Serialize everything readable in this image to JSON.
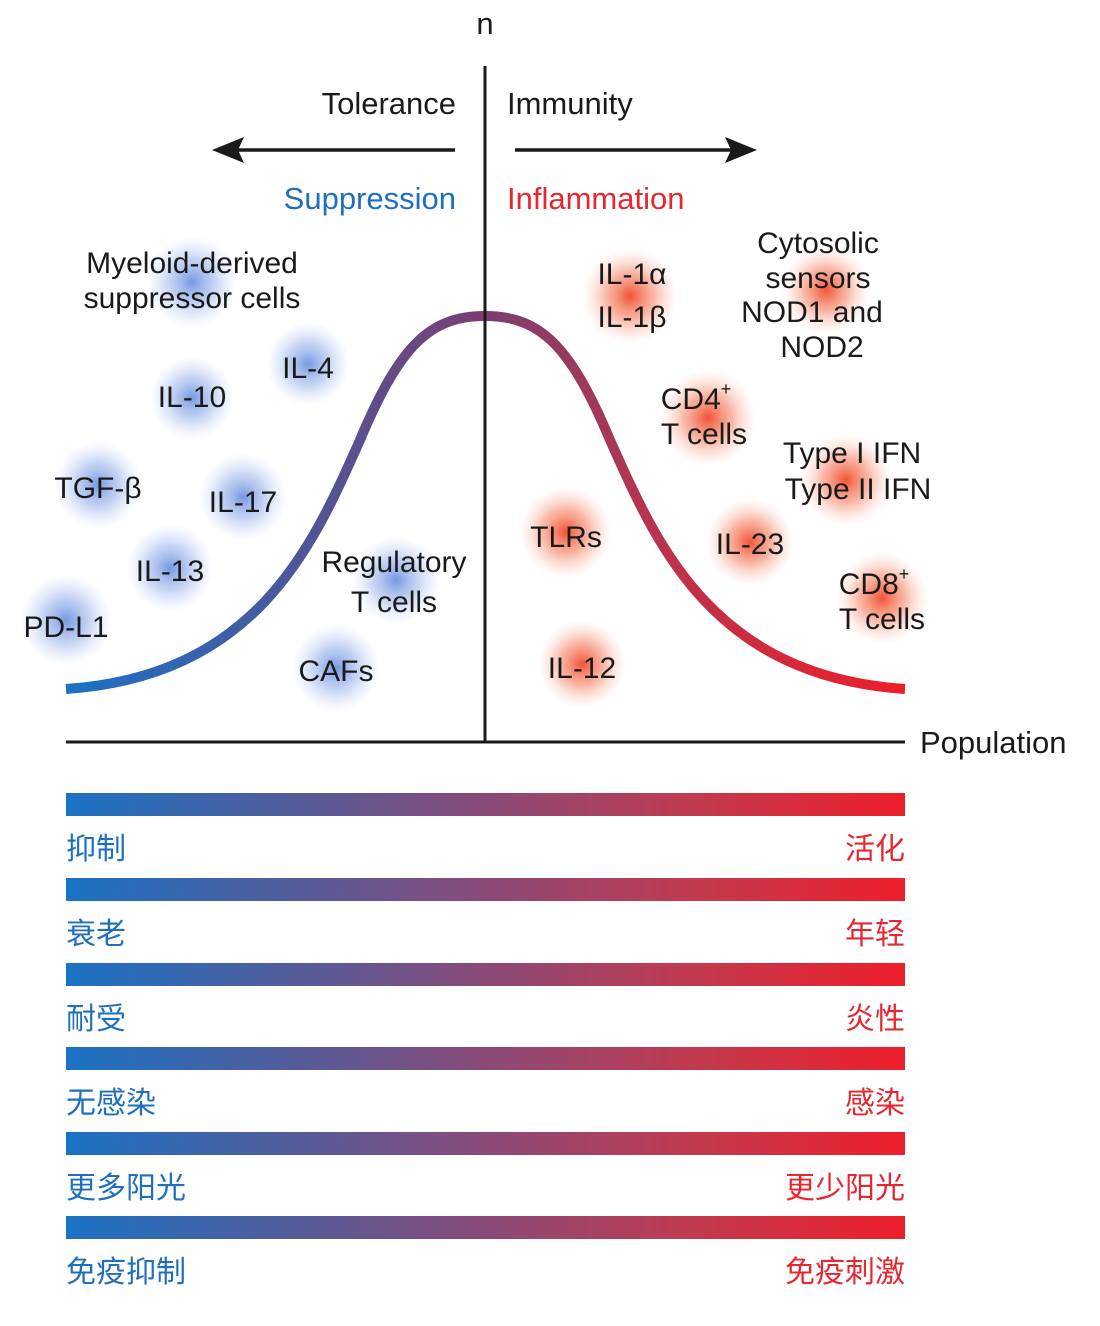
{
  "axes": {
    "y_label": "n",
    "x_label": "Population"
  },
  "header": {
    "tolerance": "Tolerance",
    "immunity": "Immunity",
    "suppression": "Suppression",
    "inflammation": "Inflammation"
  },
  "left_factors": {
    "mdsc_line1": "Myeloid-derived",
    "mdsc_line2": "suppressor cells",
    "il4": "IL-4",
    "il10": "IL-10",
    "tgfb": "TGF-β",
    "il17": "IL-17",
    "il13": "IL-13",
    "pdl1": "PD-L1",
    "treg_line1": "Regulatory",
    "treg_line2": "T cells",
    "cafs": "CAFs"
  },
  "right_factors": {
    "il1a": "IL-1α",
    "il1b": "IL-1β",
    "cyto_line1": "Cytosolic",
    "cyto_line2": "sensors",
    "cyto_line3": "NOD1 and",
    "cyto_line4": "NOD2",
    "cd4": "CD4",
    "cd4_sup": "+",
    "cd4_line2": "T cells",
    "ifn1": "Type I IFN",
    "ifn2": "Type II IFN",
    "tlrs": "TLRs",
    "il23": "IL-23",
    "cd8": "CD8",
    "cd8_sup": "+",
    "cd8_line2": "T cells",
    "il12": "IL-12"
  },
  "colors": {
    "blue": "#1f6fbf",
    "red": "#e8262f",
    "blob_blue": "#8aa9e6",
    "blob_red": "#f2603f"
  },
  "scales": [
    {
      "left": "抑制",
      "right": "活化"
    },
    {
      "left": "衰老",
      "right": "年轻"
    },
    {
      "left": "耐受",
      "right": "炎性"
    },
    {
      "left": "无感染",
      "right": "感染"
    },
    {
      "left": "更多阳光",
      "right": "更少阳光"
    },
    {
      "left": "免疫抑制",
      "right": "免疫刺激"
    }
  ]
}
